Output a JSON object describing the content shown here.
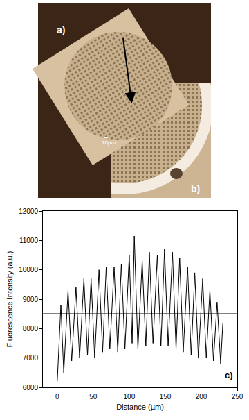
{
  "image": {
    "panels": [
      "a)",
      "b)"
    ],
    "scale_bar": "10µm"
  },
  "chart_data": {
    "type": "line",
    "panel": "c)",
    "x_label": "Distance (µm)",
    "y_label": "Fluorescence Intensity (a.u.)",
    "x": [
      0,
      5,
      9,
      15,
      20,
      26,
      31,
      37,
      42,
      47,
      52,
      58,
      63,
      68,
      73,
      79,
      84,
      89,
      94,
      100,
      104,
      107,
      112,
      118,
      123,
      128,
      133,
      139,
      144,
      149,
      154,
      160,
      165,
      170,
      175,
      181,
      186,
      191,
      196,
      202,
      207,
      212,
      217,
      222,
      227,
      230
    ],
    "values": [
      6200,
      8800,
      6500,
      9300,
      6900,
      9400,
      7000,
      9700,
      7100,
      9700,
      7000,
      10000,
      7200,
      10100,
      7300,
      10100,
      7200,
      10200,
      7300,
      10500,
      7500,
      11150,
      7300,
      10300,
      7400,
      10600,
      7500,
      10500,
      7400,
      10700,
      7400,
      10600,
      7300,
      10400,
      7200,
      10100,
      7100,
      9900,
      7000,
      9700,
      7000,
      9300,
      6900,
      8900,
      6800,
      8200
    ],
    "color": "#000000",
    "hline": 8500,
    "xlim": [
      -20,
      250
    ],
    "xticks": [
      0,
      50,
      100,
      150,
      200,
      250
    ],
    "ylim": [
      6000,
      12000
    ],
    "yticks": [
      6000,
      7000,
      8000,
      9000,
      10000,
      11000,
      12000
    ],
    "grid": false
  }
}
